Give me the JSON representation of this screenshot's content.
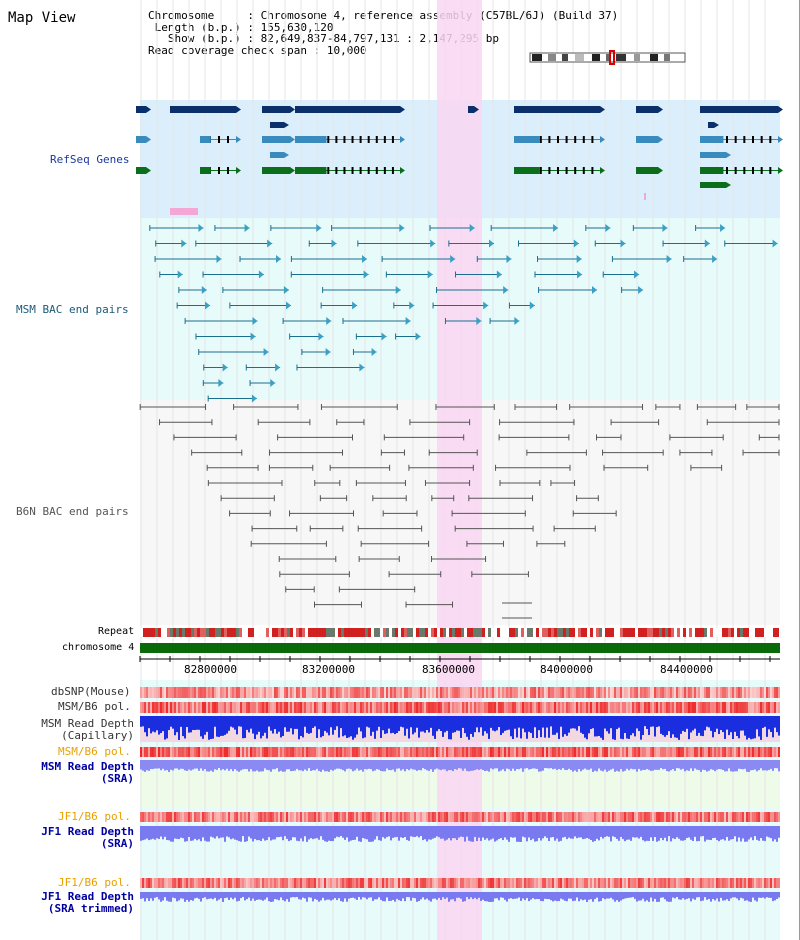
{
  "title": "Map View",
  "info": {
    "chromosome_label": "Chromosome",
    "chromosome_value": "Chromosome 4, reference assembly (C57BL/6J) (Build 37)",
    "length_label": "Length (b.p.)",
    "length_value": "155,630,120",
    "show_label": "Show (b.p.)",
    "show_value": "82,649,837-84,797,131 : 2,147,295 bp",
    "span_label": "Read coverage check span",
    "span_value": "10,000"
  },
  "tracks": {
    "refseq": "RefSeq Genes",
    "msm_bac": "MSM BAC end pairs",
    "b6n_bac": "B6N BAC end pairs",
    "repeat": "Repeat",
    "chromosome": "chromosome 4",
    "dbsnp": "dbSNP(Mouse)",
    "msm_b6_pol": "MSM/B6 pol.",
    "msm_depth_cap_1": "MSM Read Depth",
    "msm_depth_cap_2": "(Capillary)",
    "msm_b6_pol_2": "MSM/B6 pol.",
    "msm_depth_sra_1": "MSM Read Depth",
    "msm_depth_sra_2": "(SRA)",
    "jf1_b6_pol": "JF1/B6 pol.",
    "jf1_depth_sra_1": "JF1 Read Depth",
    "jf1_depth_sra_2": "(SRA)",
    "jf1_b6_pol_2": "JF1/B6 pol.",
    "jf1_depth_trim_1": "JF1 Read Depth",
    "jf1_depth_trim_2": "(SRA trimmed)"
  },
  "axis_ticks": [
    "82800000",
    "83200000",
    "83600000",
    "84000000",
    "84400000"
  ],
  "colors": {
    "refseq_bg": "#dbeefb",
    "msm_bg": "#e8fbfb",
    "highlight": "#f9d6f2",
    "gene_dark": "#0a2f6b",
    "gene_mid": "#3a8bbd",
    "gene_green": "#0b6e1a",
    "msm_line": "#1a6f8f",
    "b6n_line": "#555555",
    "chrom_bar": "#0a6a0a",
    "orange_label": "#e8a000",
    "blue_label": "#00008b",
    "navy_label": "#1a3a8a"
  }
}
